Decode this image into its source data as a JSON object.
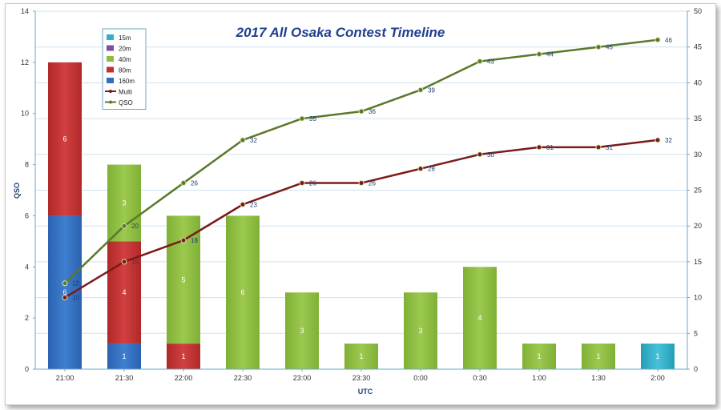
{
  "chart_data": {
    "type": "bar",
    "title": "2017 All Osaka Contest Timeline",
    "xlabel": "UTC",
    "ylabel": "QSO",
    "ylim": [
      0,
      14
    ],
    "y2lim": [
      0,
      50
    ],
    "yticks": [
      "0",
      "2",
      "4",
      "6",
      "8",
      "10",
      "12",
      "14"
    ],
    "y2ticks": [
      "0",
      "5",
      "10",
      "15",
      "20",
      "25",
      "30",
      "35",
      "40",
      "45",
      "50"
    ],
    "categories": [
      "21:00",
      "21:30",
      "22:00",
      "22:30",
      "23:00",
      "23:30",
      "0:00",
      "0:30",
      "1:00",
      "1:30",
      "2:00"
    ],
    "legend_position": "top-left",
    "bar_series": [
      {
        "name": "160m",
        "color": "#2e6dbf",
        "values": [
          6,
          1,
          0,
          0,
          0,
          0,
          0,
          0,
          0,
          0,
          0
        ]
      },
      {
        "name": "80m",
        "color": "#c0302f",
        "values": [
          6,
          4,
          1,
          0,
          0,
          0,
          0,
          0,
          0,
          0,
          0
        ]
      },
      {
        "name": "40m",
        "color": "#8cbd3f",
        "values": [
          0,
          3,
          5,
          6,
          3,
          1,
          3,
          4,
          1,
          1,
          0
        ]
      },
      {
        "name": "20m",
        "color": "#7a4fa0",
        "values": [
          0,
          0,
          0,
          0,
          0,
          0,
          0,
          0,
          0,
          0,
          0
        ]
      },
      {
        "name": "15m",
        "color": "#33b0c9",
        "values": [
          0,
          0,
          0,
          0,
          0,
          0,
          0,
          0,
          0,
          0,
          1
        ]
      }
    ],
    "legend_order": [
      "15m",
      "20m",
      "40m",
      "80m",
      "160m",
      "Multi",
      "QSO"
    ],
    "line_series": [
      {
        "name": "Multi",
        "color": "#7a1a1a",
        "axis": "right",
        "values": [
          10,
          15,
          18,
          23,
          26,
          26,
          28,
          30,
          31,
          31,
          32
        ]
      },
      {
        "name": "QSO",
        "color": "#5a7a2a",
        "axis": "right",
        "values": [
          12,
          20,
          26,
          32,
          35,
          36,
          39,
          43,
          44,
          45,
          46
        ]
      }
    ]
  }
}
